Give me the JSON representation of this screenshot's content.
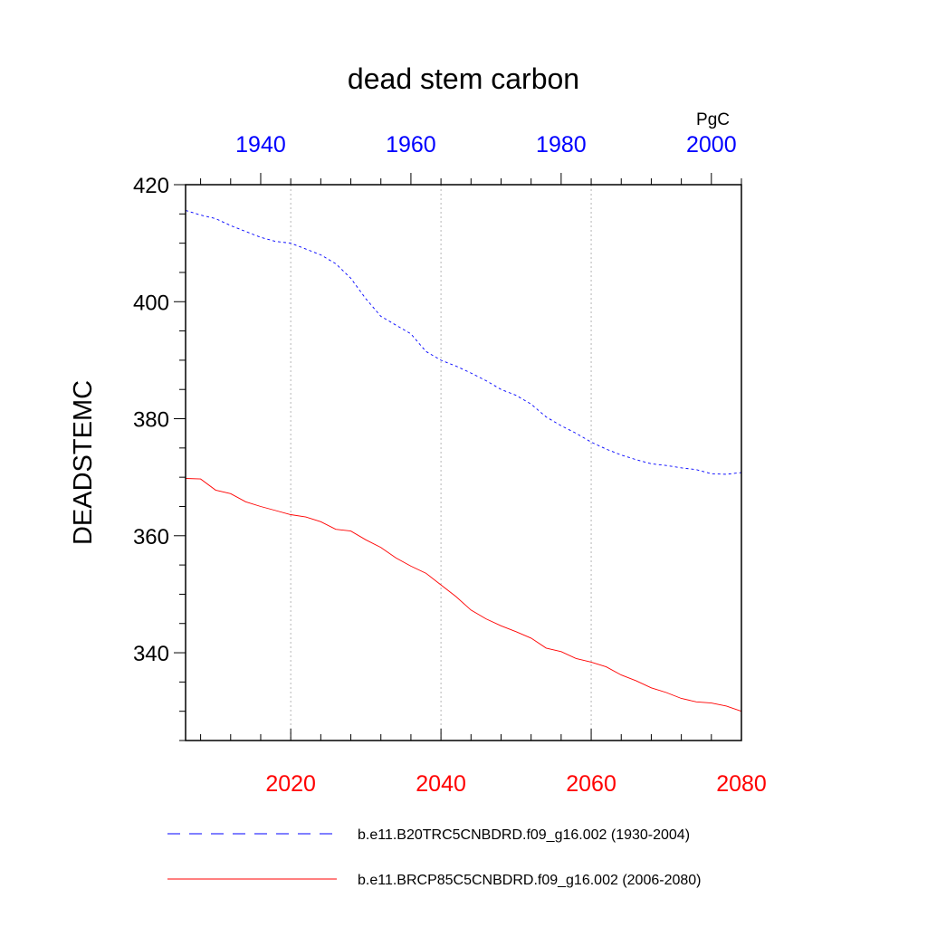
{
  "chart_data": {
    "type": "line",
    "title": "dead stem carbon",
    "units": "PgC",
    "ylabel": "DEADSTEMC",
    "ylim": [
      325,
      420
    ],
    "y_ticks": [
      340,
      360,
      380,
      400,
      420
    ],
    "x_bottom": {
      "range": [
        2006,
        2080
      ],
      "ticks": [
        2020,
        2040,
        2060,
        2080
      ],
      "color": "#ff0000"
    },
    "x_top": {
      "range": [
        1930,
        2004
      ],
      "ticks": [
        1940,
        1960,
        1980,
        2000
      ],
      "color": "#0000ff"
    },
    "grid": "vertical dotted at bottom-axis ticks",
    "series": [
      {
        "name": "b.e11.B20TRC5CNBDRD.f09_g16.002 (1930-2004)",
        "axis": "top",
        "color": "#0000ff",
        "dash": "dashed",
        "x": [
          1930,
          1932,
          1934,
          1936,
          1938,
          1940,
          1942,
          1944,
          1946,
          1948,
          1950,
          1952,
          1954,
          1956,
          1958,
          1960,
          1962,
          1964,
          1966,
          1968,
          1970,
          1972,
          1974,
          1976,
          1978,
          1980,
          1982,
          1984,
          1986,
          1988,
          1990,
          1992,
          1994,
          1996,
          1998,
          2000,
          2002,
          2004
        ],
        "values": [
          415.6,
          414.8,
          414.2,
          413.0,
          412.0,
          411.0,
          410.3,
          410.0,
          409.0,
          408.0,
          406.5,
          404.0,
          400.5,
          397.5,
          396.0,
          394.5,
          391.5,
          390.0,
          389.0,
          387.8,
          386.5,
          385.0,
          384.0,
          382.5,
          380.3,
          378.8,
          377.5,
          376.0,
          374.8,
          373.8,
          373.0,
          372.3,
          372.0,
          371.6,
          371.3,
          370.6,
          370.5,
          370.8
        ]
      },
      {
        "name": "b.e11.BRCP85C5CNBDRD.f09_g16.002 (2006-2080)",
        "axis": "bottom",
        "color": "#ff0000",
        "dash": "solid",
        "x": [
          2006,
          2008,
          2010,
          2012,
          2014,
          2016,
          2018,
          2020,
          2022,
          2024,
          2026,
          2028,
          2030,
          2032,
          2034,
          2036,
          2038,
          2040,
          2042,
          2044,
          2046,
          2048,
          2050,
          2052,
          2054,
          2056,
          2058,
          2060,
          2062,
          2064,
          2066,
          2068,
          2070,
          2072,
          2074,
          2076,
          2078,
          2080
        ],
        "values": [
          369.8,
          369.7,
          367.8,
          367.2,
          365.8,
          365.0,
          364.3,
          363.6,
          363.2,
          362.4,
          361.1,
          360.8,
          359.3,
          358.0,
          356.2,
          354.8,
          353.6,
          351.6,
          349.6,
          347.3,
          345.8,
          344.6,
          343.6,
          342.5,
          340.8,
          340.2,
          339.0,
          338.4,
          337.6,
          336.2,
          335.2,
          334.0,
          333.2,
          332.2,
          331.6,
          331.4,
          330.9,
          330.0
        ]
      }
    ]
  }
}
